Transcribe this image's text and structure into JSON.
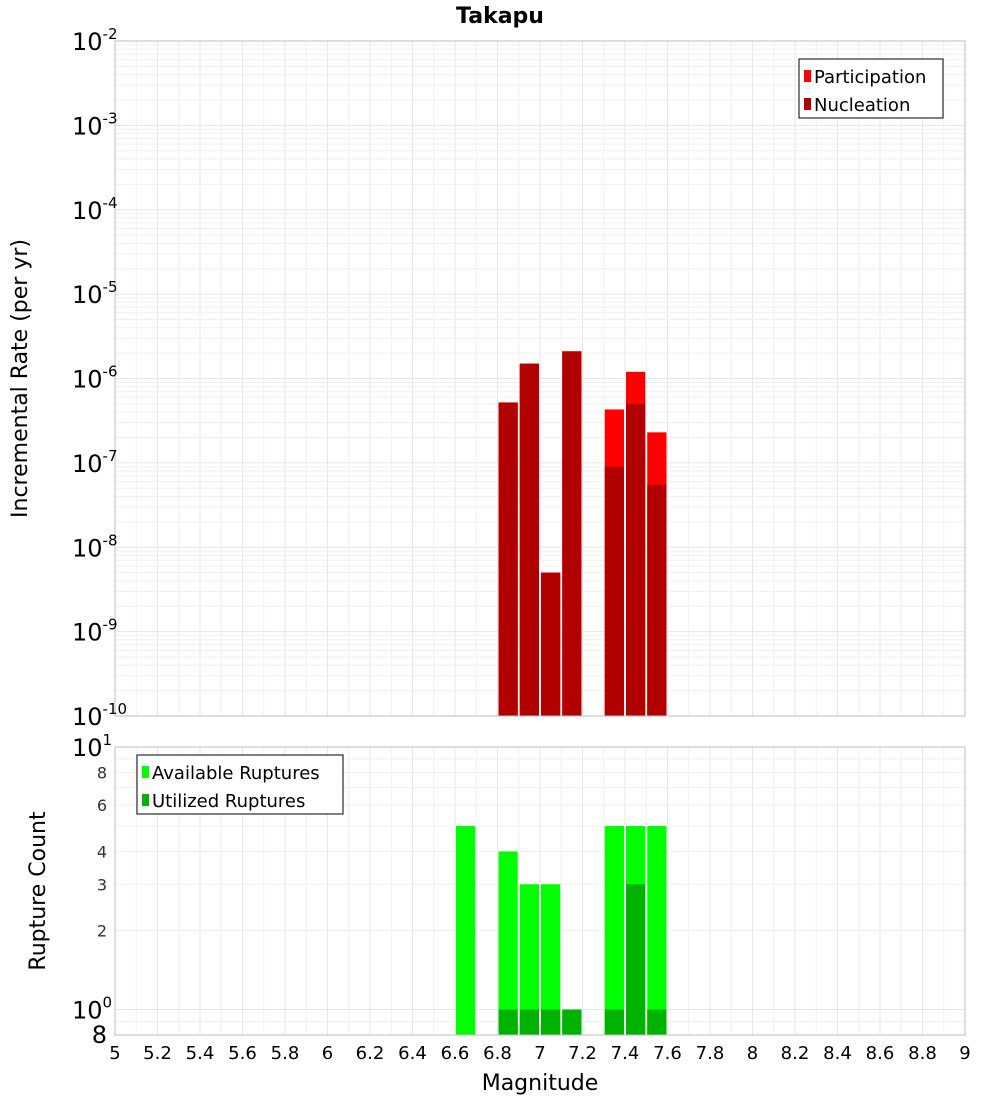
{
  "chart_data": [
    {
      "type": "bar",
      "title": "Takapu",
      "ylabel": "Incremental Rate (per yr)",
      "xlabel": "",
      "yscale": "log",
      "ylim": [
        1e-10,
        0.01
      ],
      "xlim": [
        5,
        9
      ],
      "grid": true,
      "legend_placement": "top-right",
      "y_tick_labels": [
        {
          "base": "10",
          "exp": "-10"
        },
        {
          "base": "10",
          "exp": "-9"
        },
        {
          "base": "10",
          "exp": "-8"
        },
        {
          "base": "10",
          "exp": "-7"
        },
        {
          "base": "10",
          "exp": "-6"
        },
        {
          "base": "10",
          "exp": "-5"
        },
        {
          "base": "10",
          "exp": "-4"
        },
        {
          "base": "10",
          "exp": "-3"
        },
        {
          "base": "10",
          "exp": "-2"
        }
      ],
      "bin_width": 0.1,
      "series": [
        {
          "name": "Participation",
          "color": "#ff0000",
          "x": [
            6.85,
            6.95,
            7.05,
            7.15,
            7.35,
            7.45,
            7.55
          ],
          "values": [
            5.2e-07,
            1.5e-06,
            5e-09,
            2.1e-06,
            4.3e-07,
            1.2e-06,
            2.3e-07
          ]
        },
        {
          "name": "Nucleation",
          "color": "#b20000",
          "x": [
            6.85,
            6.95,
            7.05,
            7.15,
            7.35,
            7.45,
            7.55
          ],
          "values": [
            5.2e-07,
            1.5e-06,
            5e-09,
            2.1e-06,
            9e-08,
            5e-07,
            5.5e-08
          ]
        }
      ]
    },
    {
      "type": "bar",
      "ylabel": "Rupture Count",
      "xlabel": "Magnitude",
      "yscale": "log",
      "ylim": [
        0.8,
        10
      ],
      "xlim": [
        5,
        9
      ],
      "grid": true,
      "legend_placement": "top-left",
      "x_tick_labels": [
        "5",
        "5.2",
        "5.4",
        "5.6",
        "5.8",
        "6",
        "6.2",
        "6.4",
        "6.6",
        "6.8",
        "7",
        "7.2",
        "7.4",
        "7.6",
        "7.8",
        "8",
        "8.2",
        "8.4",
        "8.6",
        "8.8",
        "9"
      ],
      "y_tick_labels_minor": [
        "2",
        "3",
        "4",
        "6",
        "8"
      ],
      "y_tick_labels_major": [
        {
          "base": "10",
          "exp": "0"
        },
        {
          "base": "10",
          "exp": "1"
        }
      ],
      "y_tick_label_bottom": "8",
      "bin_width": 0.1,
      "series": [
        {
          "name": "Available Ruptures",
          "color": "#00ff00",
          "x": [
            6.65,
            6.85,
            6.95,
            7.05,
            7.15,
            7.35,
            7.45,
            7.55
          ],
          "values": [
            5,
            4,
            3,
            3,
            1,
            5,
            5,
            5
          ]
        },
        {
          "name": "Utilized Ruptures",
          "color": "#00b200",
          "x": [
            6.85,
            6.95,
            7.05,
            7.15,
            7.35,
            7.45,
            7.55
          ],
          "values": [
            1,
            1,
            1,
            1,
            1,
            3,
            1
          ]
        }
      ]
    }
  ]
}
